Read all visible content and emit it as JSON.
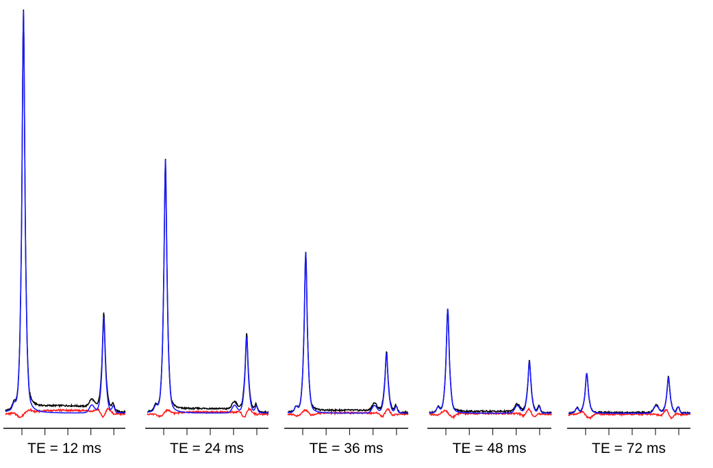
{
  "chart_data": {
    "type": "line",
    "title": "",
    "xlabel": "",
    "ylabel": "",
    "grid": false,
    "legend": "none",
    "colors": {
      "measured": "#000000",
      "fit": "#1a1aff",
      "residual": "#ff1a1a"
    },
    "panels": [
      {
        "label": "TE = 12 ms",
        "te_ms": 12,
        "peaks": [
          {
            "pos": 0.15,
            "height": 1.0,
            "width": 0.012
          },
          {
            "pos": 0.82,
            "height": 0.24,
            "width": 0.012
          }
        ]
      },
      {
        "label": "TE = 24 ms",
        "te_ms": 24,
        "peaks": [
          {
            "pos": 0.15,
            "height": 0.63,
            "width": 0.012
          },
          {
            "pos": 0.82,
            "height": 0.19,
            "width": 0.012
          }
        ]
      },
      {
        "label": "TE = 36 ms",
        "te_ms": 36,
        "peaks": [
          {
            "pos": 0.15,
            "height": 0.4,
            "width": 0.012
          },
          {
            "pos": 0.82,
            "height": 0.15,
            "width": 0.012
          }
        ]
      },
      {
        "label": "TE = 48 ms",
        "te_ms": 48,
        "peaks": [
          {
            "pos": 0.15,
            "height": 0.26,
            "width": 0.012
          },
          {
            "pos": 0.82,
            "height": 0.13,
            "width": 0.012
          }
        ]
      },
      {
        "label": "TE = 72 ms",
        "te_ms": 72,
        "peaks": [
          {
            "pos": 0.15,
            "height": 0.1,
            "width": 0.012
          },
          {
            "pos": 0.82,
            "height": 0.09,
            "width": 0.012
          }
        ]
      }
    ]
  }
}
